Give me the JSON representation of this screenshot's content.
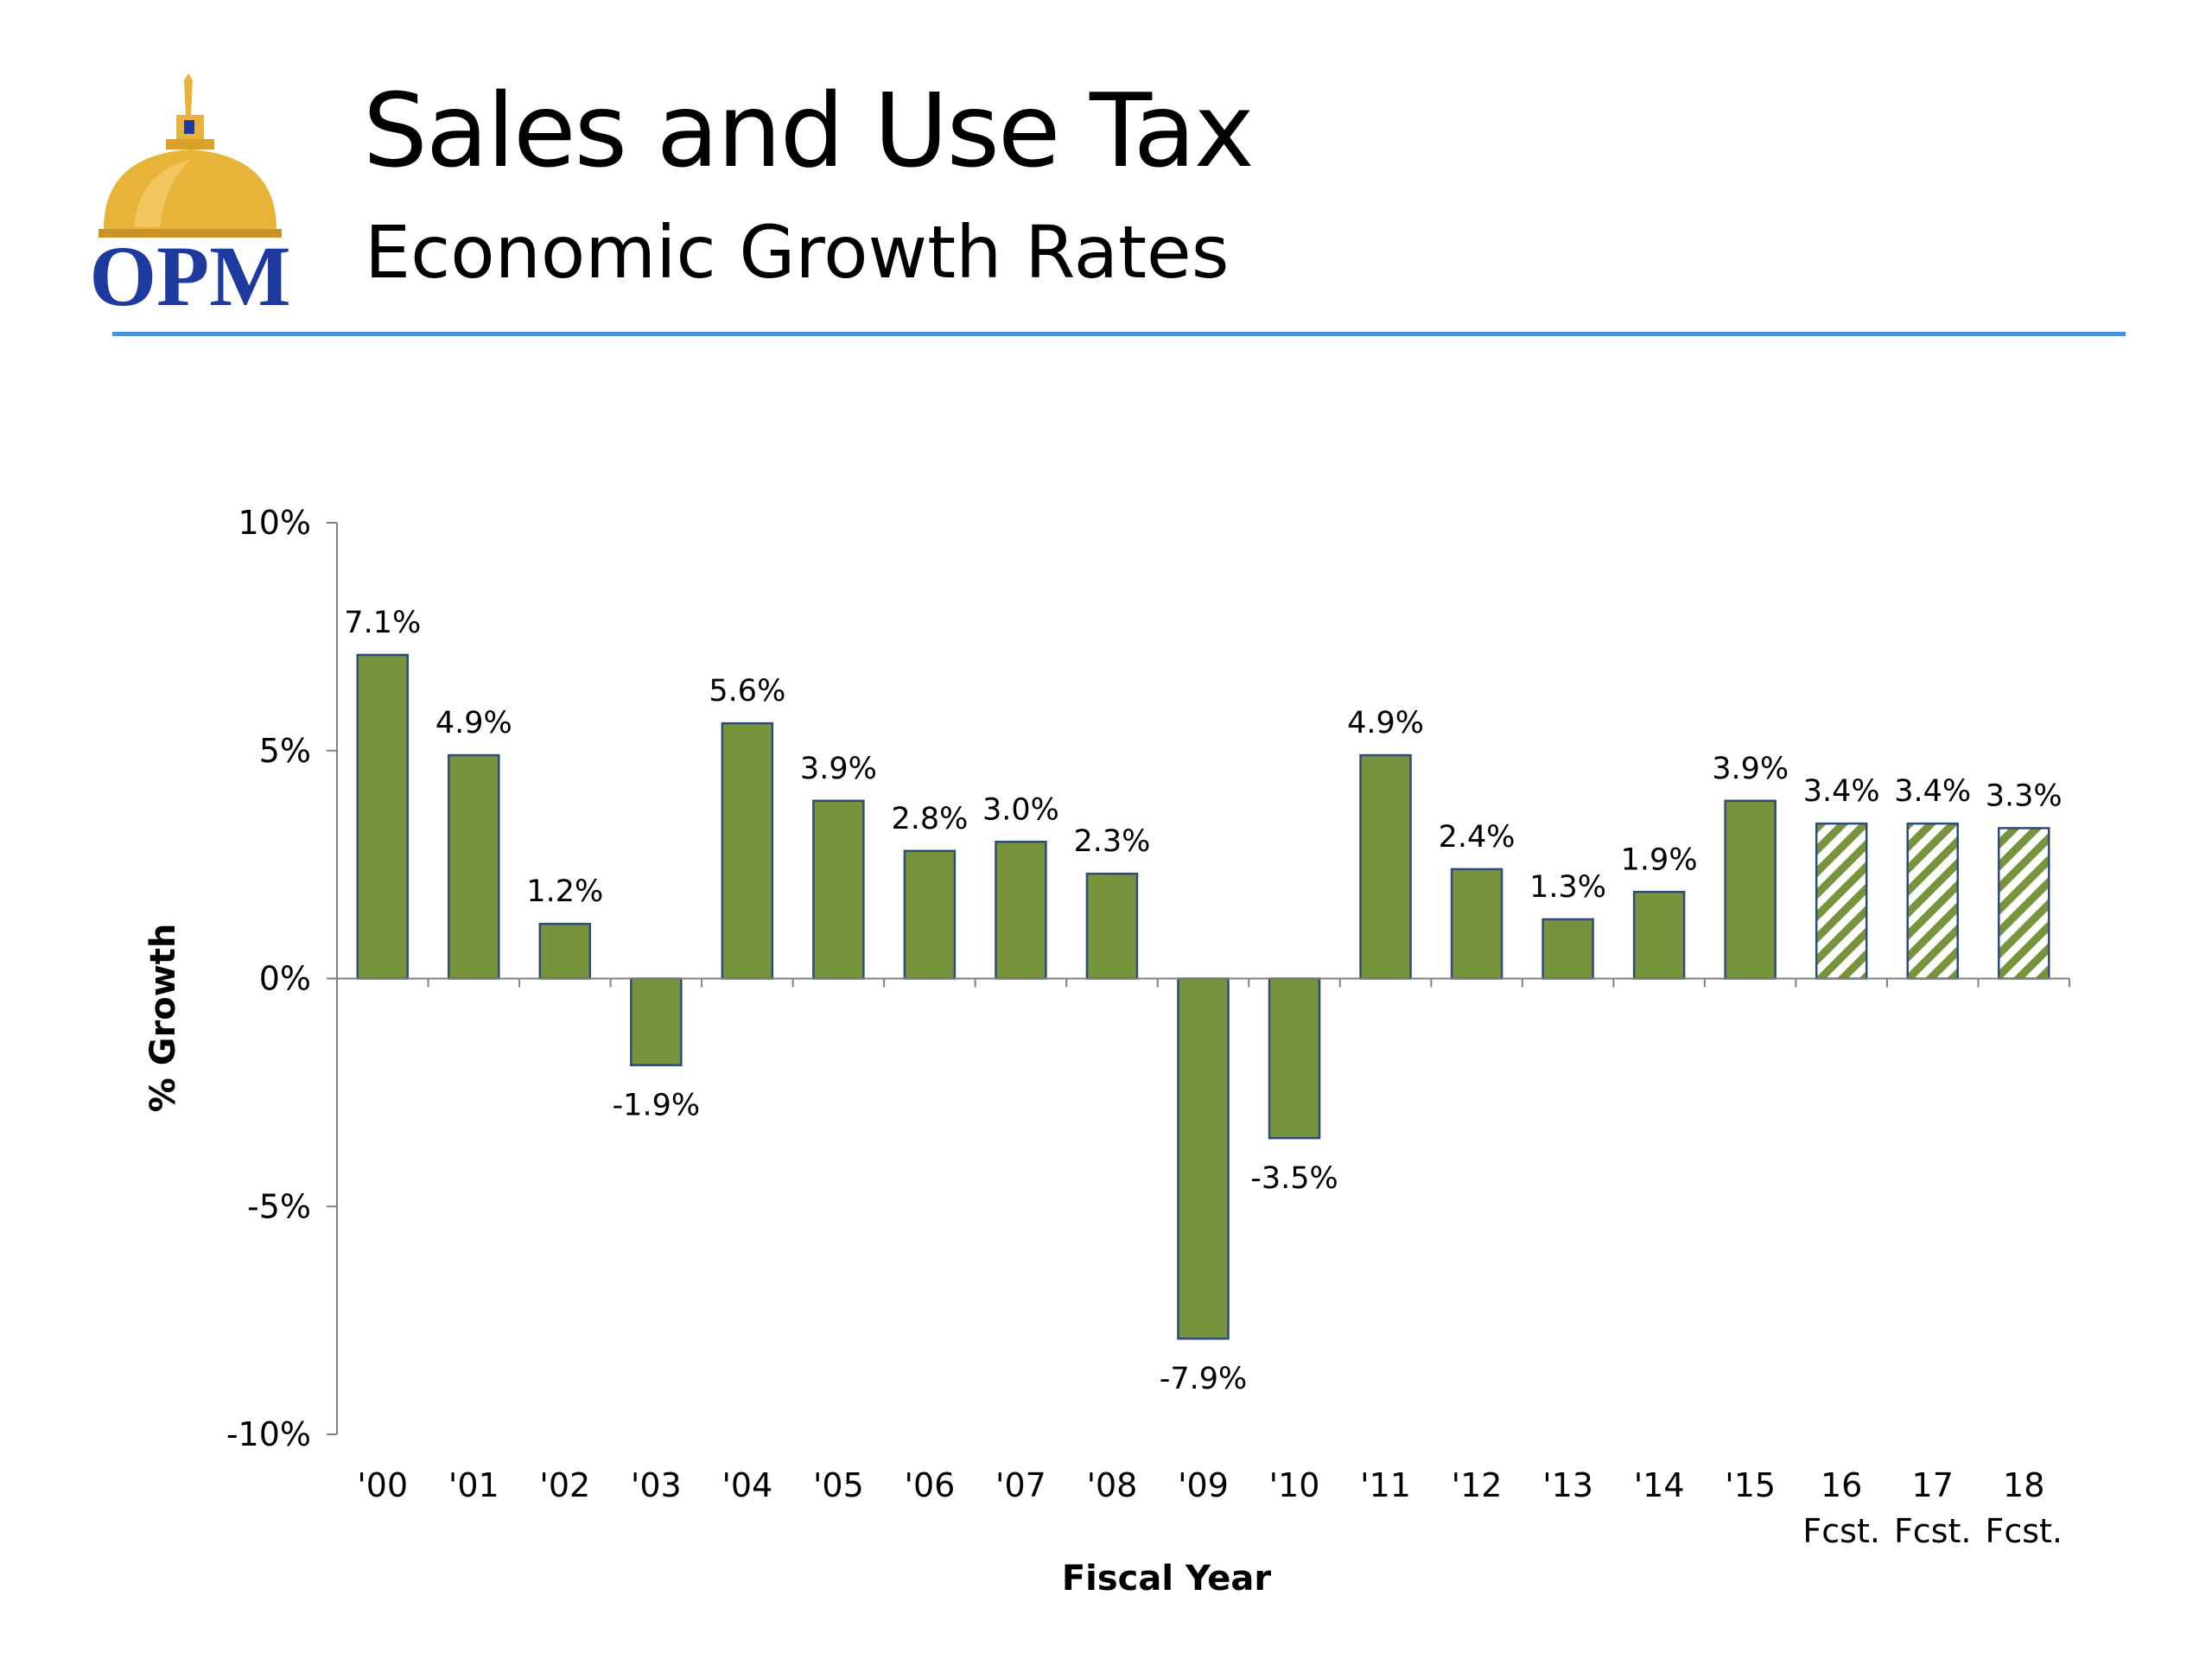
{
  "header": {
    "logo_text": "OPM",
    "title": "Sales and Use Tax",
    "subtitle": "Economic Growth Rates"
  },
  "colors": {
    "bar_fill": "#77933c",
    "bar_border": "#2f4b7a",
    "forecast_stripe": "#77933c",
    "rule": "#4a90d9",
    "logo_gold": "#e8b339",
    "logo_blue": "#1f3a9e"
  },
  "chart_data": {
    "type": "bar",
    "categories": [
      "'00",
      "'01",
      "'02",
      "'03",
      "'04",
      "'05",
      "'06",
      "'07",
      "'08",
      "'09",
      "'10",
      "'11",
      "'12",
      "'13",
      "'14",
      "'15",
      "16",
      "17",
      "18"
    ],
    "category_sublabels": [
      "",
      "",
      "",
      "",
      "",
      "",
      "",
      "",
      "",
      "",
      "",
      "",
      "",
      "",
      "",
      "",
      "Fcst.",
      "Fcst.",
      "Fcst."
    ],
    "values": [
      7.1,
      4.9,
      1.2,
      -1.9,
      5.6,
      3.9,
      2.8,
      3.0,
      2.3,
      -7.9,
      -3.5,
      4.9,
      2.4,
      1.3,
      1.9,
      3.9,
      3.4,
      3.4,
      3.3
    ],
    "value_labels": [
      "7.1%",
      "4.9%",
      "1.2%",
      "-1.9%",
      "5.6%",
      "3.9%",
      "2.8%",
      "3.0%",
      "2.3%",
      "-7.9%",
      "-3.5%",
      "4.9%",
      "2.4%",
      "1.3%",
      "1.9%",
      "3.9%",
      "3.4%",
      "3.4%",
      "3.3%"
    ],
    "forecast": [
      false,
      false,
      false,
      false,
      false,
      false,
      false,
      false,
      false,
      false,
      false,
      false,
      false,
      false,
      false,
      false,
      true,
      true,
      true
    ],
    "xlabel": "Fiscal Year",
    "ylabel": "% Growth",
    "ylim": [
      -10,
      10
    ],
    "yticks": [
      10,
      5,
      0,
      -5,
      -10
    ],
    "ytick_labels": [
      "10%",
      "5%",
      "0%",
      "-5%",
      "-10%"
    ],
    "grid": false,
    "legend": "none"
  }
}
